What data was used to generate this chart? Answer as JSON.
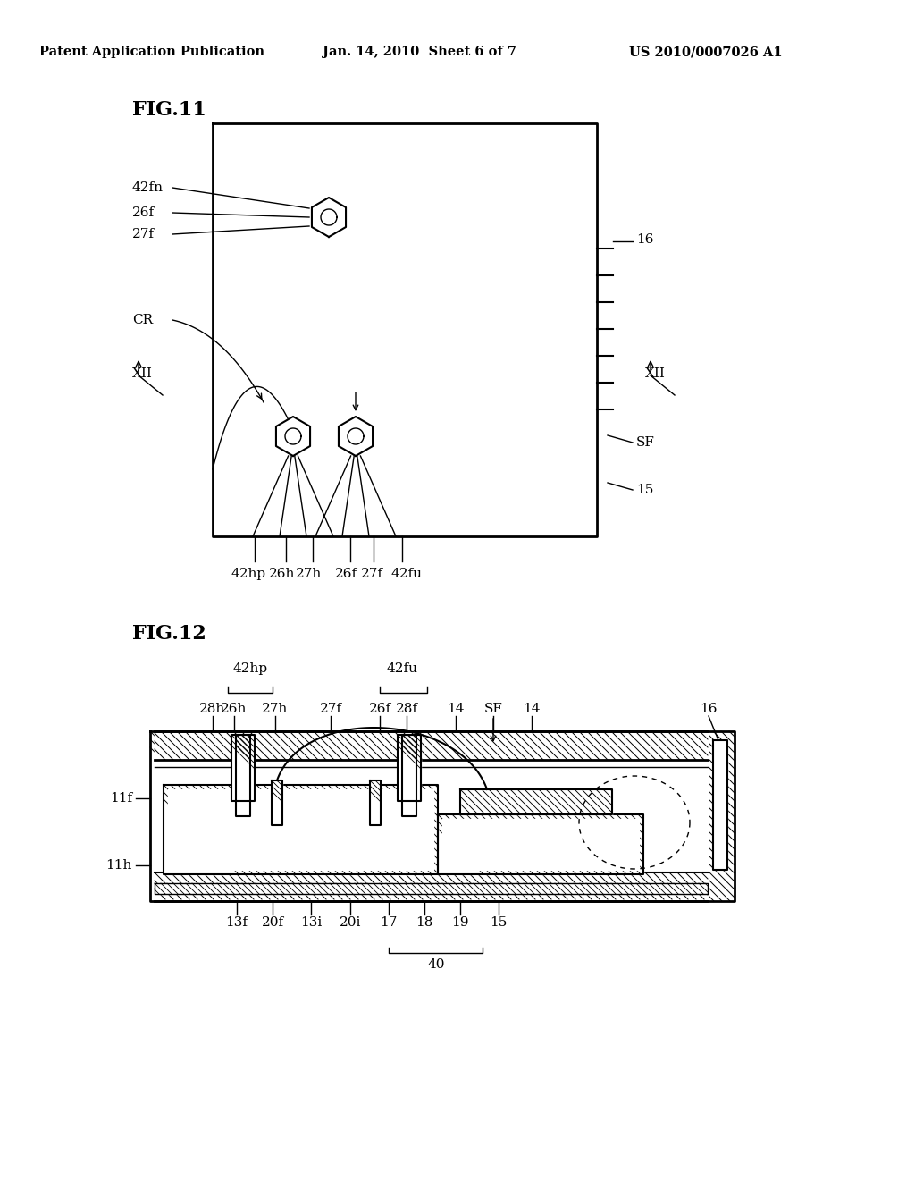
{
  "background_color": "#ffffff",
  "header_left": "Patent Application Publication",
  "header_mid": "Jan. 14, 2010  Sheet 6 of 7",
  "header_right": "US 2010/0007026 A1",
  "fig11_label": "FIG.11",
  "fig12_label": "FIG.12"
}
